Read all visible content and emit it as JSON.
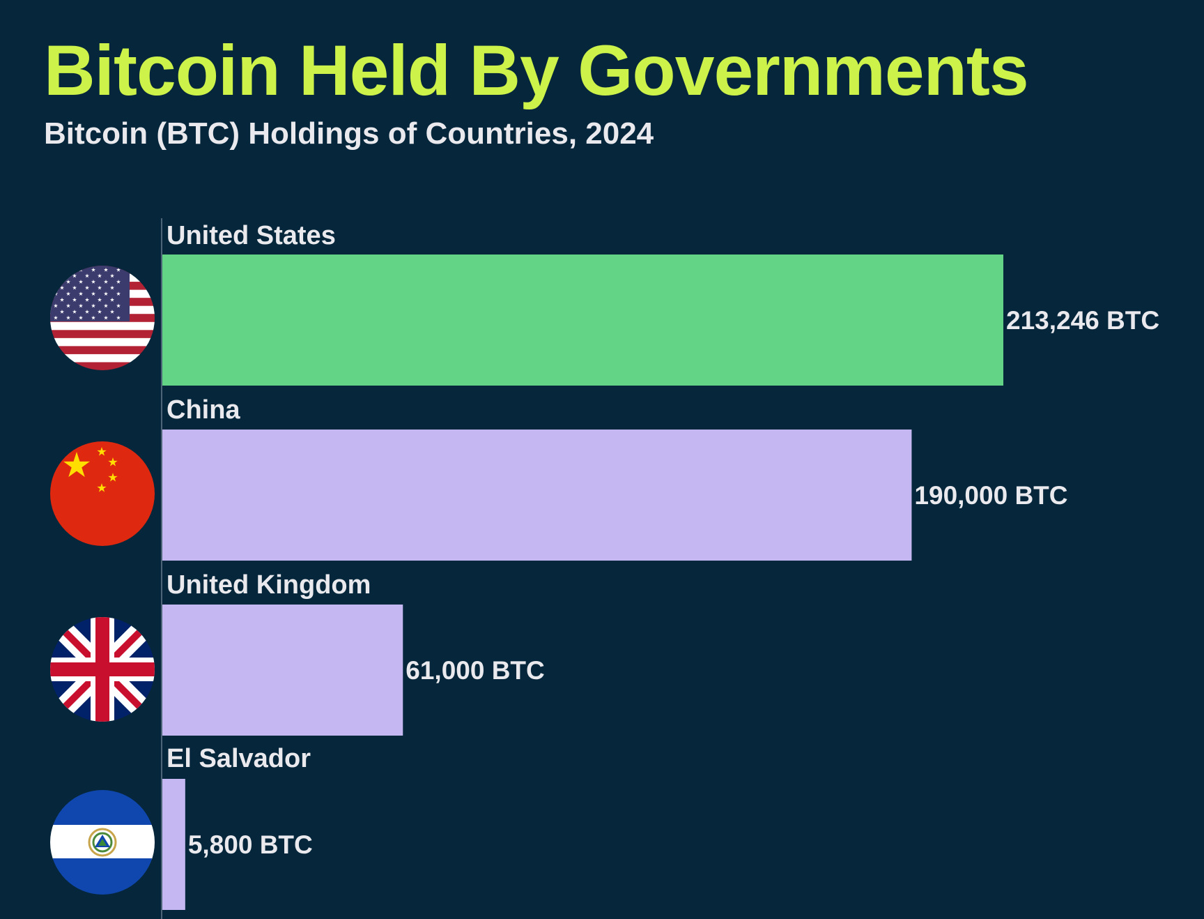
{
  "colors": {
    "background": "#06273b",
    "title": "#cdf24a",
    "text": "#e9e9ee",
    "highlight_bar": "#63d386",
    "bar": "#c5b8f2",
    "axis": "#4e6577"
  },
  "chart_data": {
    "type": "bar",
    "orientation": "horizontal",
    "title": "Bitcoin Held By Governments",
    "subtitle": "Bitcoin (BTC) Holdings of Countries, 2024",
    "xlabel": "",
    "ylabel": "",
    "xlim": [
      0,
      213246
    ],
    "grid": false,
    "legend": "none",
    "unit": "BTC",
    "categories": [
      "United States",
      "China",
      "United Kingdom",
      "El Salvador"
    ],
    "values": [
      213246,
      190000,
      61000,
      5800
    ],
    "value_labels": [
      "213,246 BTC",
      "190,000 BTC",
      "61,000 BTC",
      "5,800 BTC"
    ],
    "flags": [
      "us-flag-icon",
      "china-flag-icon",
      "uk-flag-icon",
      "el-salvador-flag-icon"
    ],
    "highlight_index": 0
  }
}
